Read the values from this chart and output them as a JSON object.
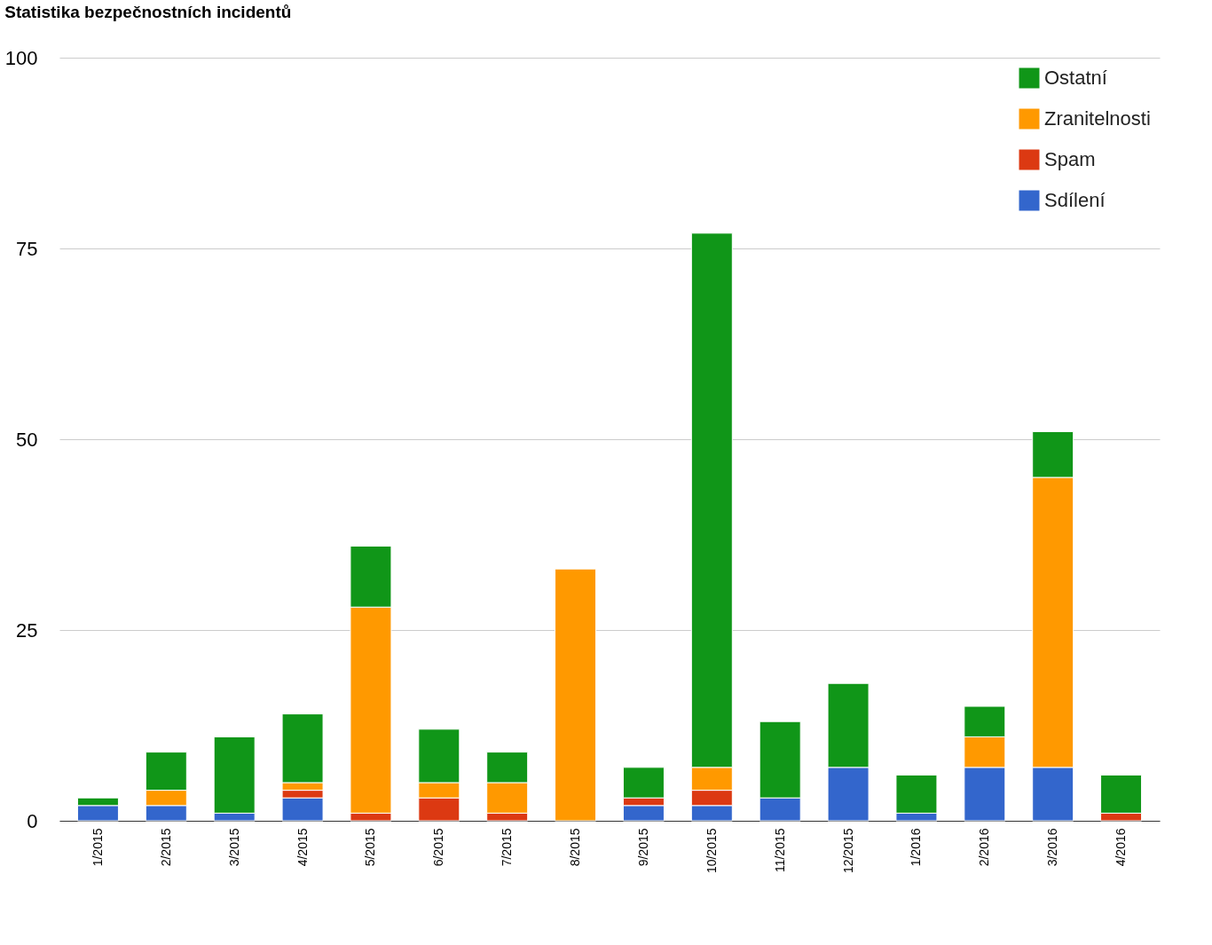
{
  "chart_data": {
    "type": "bar",
    "title": "Statistika bezpečnostních incidentů",
    "stacked": true,
    "categories": [
      "1/2015",
      "2/2015",
      "3/2015",
      "4/2015",
      "5/2015",
      "6/2015",
      "7/2015",
      "8/2015",
      "9/2015",
      "10/2015",
      "11/2015",
      "12/2015",
      "1/2016",
      "2/2016",
      "3/2016",
      "4/2016"
    ],
    "series": [
      {
        "name": "Sdílení",
        "color": "#3366cc",
        "values": [
          2,
          2,
          1,
          3,
          0,
          0,
          0,
          0,
          2,
          2,
          3,
          7,
          1,
          7,
          7,
          0
        ]
      },
      {
        "name": "Spam",
        "color": "#dc3912",
        "values": [
          0,
          0,
          0,
          1,
          1,
          3,
          1,
          0,
          1,
          2,
          0,
          0,
          0,
          0,
          0,
          1
        ]
      },
      {
        "name": "Zranitelnosti",
        "color": "#ff9900",
        "values": [
          0,
          2,
          0,
          1,
          27,
          2,
          4,
          33,
          0,
          3,
          0,
          0,
          0,
          4,
          38,
          0
        ]
      },
      {
        "name": "Ostatní",
        "color": "#109618",
        "values": [
          1,
          5,
          10,
          9,
          8,
          7,
          4,
          0,
          4,
          70,
          10,
          11,
          5,
          4,
          6,
          5
        ]
      }
    ],
    "ylim": [
      0,
      100
    ],
    "yticks": [
      0,
      25,
      50,
      75,
      100
    ],
    "grid": "y",
    "legend": "top right"
  }
}
